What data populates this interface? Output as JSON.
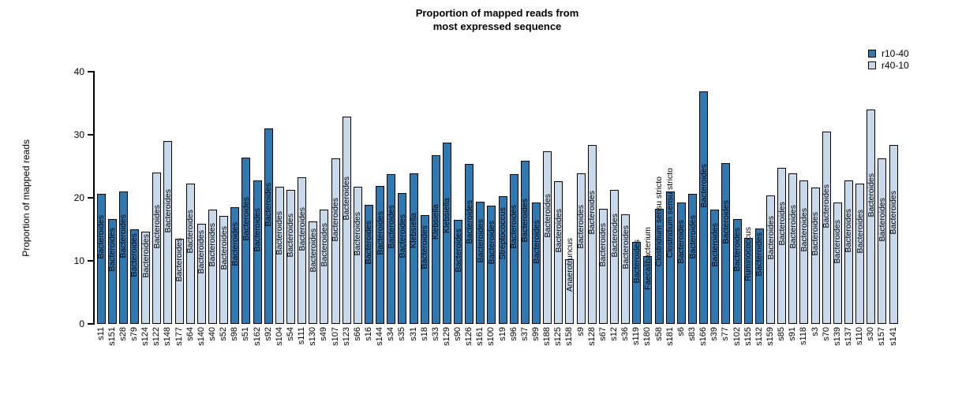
{
  "title": {
    "line1": "Proportion of mapped reads from",
    "line2": "most expressed sequence"
  },
  "y_axis": {
    "label": "Proportion of mapped reads",
    "ticks": [
      0,
      10,
      20,
      30,
      40
    ],
    "max": 40
  },
  "legend": [
    {
      "label": "r10-40",
      "group": "r10-40"
    },
    {
      "label": "r40-10",
      "group": "r40-10"
    }
  ],
  "chart_data": {
    "type": "bar",
    "title": "Proportion of mapped reads from most expressed sequence",
    "xlabel": "",
    "ylabel": "Proportion of mapped reads",
    "ylim": [
      0,
      40
    ],
    "grid": false,
    "legend_position": "top-right",
    "groups": {
      "r10-40": "#2f79b2",
      "r40-10": "#c9d9ec"
    },
    "bars": [
      {
        "sample": "s11",
        "value": 20.6,
        "group": "r10-40",
        "label": "Bacteroides"
      },
      {
        "sample": "s151",
        "value": 16.6,
        "group": "r10-40",
        "label": "Bacteroides"
      },
      {
        "sample": "s28",
        "value": 21.0,
        "group": "r10-40",
        "label": "Bacteroides"
      },
      {
        "sample": "s79",
        "value": 15.0,
        "group": "r10-40",
        "label": "Bacteroides"
      },
      {
        "sample": "s124",
        "value": 14.6,
        "group": "r40-10",
        "label": "Bacteroides"
      },
      {
        "sample": "s122",
        "value": 24.0,
        "group": "r40-10",
        "label": "Bacteroides"
      },
      {
        "sample": "s148",
        "value": 29.0,
        "group": "r40-10",
        "label": "Bacteroides"
      },
      {
        "sample": "s177",
        "value": 13.5,
        "group": "r40-10",
        "label": "Bacteroides"
      },
      {
        "sample": "s64",
        "value": 22.3,
        "group": "r40-10",
        "label": "Bacteroides"
      },
      {
        "sample": "s140",
        "value": 15.9,
        "group": "r40-10",
        "label": "Bacteroides"
      },
      {
        "sample": "s40",
        "value": 18.1,
        "group": "r40-10",
        "label": "Bacteroides"
      },
      {
        "sample": "s52",
        "value": 17.1,
        "group": "r40-10",
        "label": "Bacteroides"
      },
      {
        "sample": "s98",
        "value": 18.5,
        "group": "r10-40",
        "label": "Bacteroides"
      },
      {
        "sample": "s51",
        "value": 26.4,
        "group": "r10-40",
        "label": "Bacteroides"
      },
      {
        "sample": "s162",
        "value": 22.8,
        "group": "r10-40",
        "label": "Bacteroides"
      },
      {
        "sample": "s92",
        "value": 31.0,
        "group": "r10-40",
        "label": "Bacteroides"
      },
      {
        "sample": "s104",
        "value": 21.8,
        "group": "r40-10",
        "label": "Bacteroides"
      },
      {
        "sample": "s54",
        "value": 21.2,
        "group": "r40-10",
        "label": "Bacteroides"
      },
      {
        "sample": "s111",
        "value": 23.2,
        "group": "r40-10",
        "label": "Bacteroides"
      },
      {
        "sample": "s130",
        "value": 16.3,
        "group": "r40-10",
        "label": "Bacteroides"
      },
      {
        "sample": "s49",
        "value": 18.1,
        "group": "r40-10",
        "label": "Bacteroides"
      },
      {
        "sample": "s107",
        "value": 26.2,
        "group": "r40-10",
        "label": "Bacteroides"
      },
      {
        "sample": "s123",
        "value": 32.9,
        "group": "r40-10",
        "label": "Bacteroides"
      },
      {
        "sample": "s66",
        "value": 21.7,
        "group": "r40-10",
        "label": "Bacteroides"
      },
      {
        "sample": "s16",
        "value": 18.9,
        "group": "r10-40",
        "label": "Bacteroides"
      },
      {
        "sample": "s144",
        "value": 21.9,
        "group": "r10-40",
        "label": "Bacteroides"
      },
      {
        "sample": "s34",
        "value": 23.8,
        "group": "r10-40",
        "label": "Bacteroides"
      },
      {
        "sample": "s35",
        "value": 20.8,
        "group": "r10-40",
        "label": "Bacteroides"
      },
      {
        "sample": "s31",
        "value": 23.9,
        "group": "r10-40",
        "label": "Klebsiella"
      },
      {
        "sample": "s18",
        "value": 17.3,
        "group": "r10-40",
        "label": "Bacteroides"
      },
      {
        "sample": "s33",
        "value": 26.7,
        "group": "r10-40",
        "label": "Klebsiella"
      },
      {
        "sample": "s129",
        "value": 28.7,
        "group": "r10-40",
        "label": "Klebsiella"
      },
      {
        "sample": "s90",
        "value": 16.5,
        "group": "r10-40",
        "label": "Bacteroides"
      },
      {
        "sample": "s126",
        "value": 25.4,
        "group": "r10-40",
        "label": "Bacteroides"
      },
      {
        "sample": "s161",
        "value": 19.4,
        "group": "r10-40",
        "label": "Bacteroides"
      },
      {
        "sample": "s100",
        "value": 18.8,
        "group": "r10-40",
        "label": "Bacteroides"
      },
      {
        "sample": "s19",
        "value": 20.3,
        "group": "r10-40",
        "label": "Streptococcus"
      },
      {
        "sample": "s96",
        "value": 23.8,
        "group": "r10-40",
        "label": "Bacteroides"
      },
      {
        "sample": "s37",
        "value": 25.9,
        "group": "r10-40",
        "label": "Bacteroides"
      },
      {
        "sample": "s99",
        "value": 19.2,
        "group": "r10-40",
        "label": "Bacteroides"
      },
      {
        "sample": "s188",
        "value": 27.4,
        "group": "r40-10",
        "label": "Bacteroides"
      },
      {
        "sample": "s125",
        "value": 22.6,
        "group": "r40-10",
        "label": "Bacteroides"
      },
      {
        "sample": "s158",
        "value": 10.2,
        "group": "r40-10",
        "label": "Anaerotruncus"
      },
      {
        "sample": "s9",
        "value": 23.9,
        "group": "r40-10",
        "label": "Bacteroides"
      },
      {
        "sample": "s128",
        "value": 28.4,
        "group": "r40-10",
        "label": "Bacteroides"
      },
      {
        "sample": "s67",
        "value": 18.2,
        "group": "r40-10",
        "label": "Bacteroides"
      },
      {
        "sample": "s12",
        "value": 21.2,
        "group": "r40-10",
        "label": "Bacteroides"
      },
      {
        "sample": "s36",
        "value": 17.4,
        "group": "r40-10",
        "label": "Bacteroides"
      },
      {
        "sample": "s119",
        "value": 13.0,
        "group": "r10-40",
        "label": "Bacteroides"
      },
      {
        "sample": "s180",
        "value": 10.7,
        "group": "r10-40",
        "label": "Faecalibacterium"
      },
      {
        "sample": "s58",
        "value": 18.2,
        "group": "r10-40",
        "label": "Clostridium sensu stricto"
      },
      {
        "sample": "s181",
        "value": 21.0,
        "group": "r10-40",
        "label": "Clostridium sensu stricto"
      },
      {
        "sample": "s6",
        "value": 19.2,
        "group": "r10-40",
        "label": "Bacteroides"
      },
      {
        "sample": "s83",
        "value": 20.6,
        "group": "r10-40",
        "label": "Bacteroides"
      },
      {
        "sample": "s166",
        "value": 36.9,
        "group": "r10-40",
        "label": "Bacteroides"
      },
      {
        "sample": "s39",
        "value": 18.1,
        "group": "r10-40",
        "label": "Bacteroides"
      },
      {
        "sample": "s77",
        "value": 25.5,
        "group": "r10-40",
        "label": "Bacteroides"
      },
      {
        "sample": "s102",
        "value": 16.6,
        "group": "r10-40",
        "label": "Bacteroides"
      },
      {
        "sample": "s155",
        "value": 13.6,
        "group": "r10-40",
        "label": "Ruminococcus"
      },
      {
        "sample": "s132",
        "value": 15.1,
        "group": "r10-40",
        "label": "Bacteroides"
      },
      {
        "sample": "s159",
        "value": 20.4,
        "group": "r40-10",
        "label": "Bacteroides"
      },
      {
        "sample": "s85",
        "value": 24.8,
        "group": "r40-10",
        "label": "Bacteroides"
      },
      {
        "sample": "s91",
        "value": 23.9,
        "group": "r40-10",
        "label": "Bacteroides"
      },
      {
        "sample": "s118",
        "value": 22.8,
        "group": "r40-10",
        "label": "Bacteroides"
      },
      {
        "sample": "s3",
        "value": 21.6,
        "group": "r40-10",
        "label": "Bacteroides"
      },
      {
        "sample": "s70",
        "value": 30.5,
        "group": "r40-10",
        "label": "Bacteroides"
      },
      {
        "sample": "s139",
        "value": 19.2,
        "group": "r40-10",
        "label": "Bacteroides"
      },
      {
        "sample": "s137",
        "value": 22.7,
        "group": "r40-10",
        "label": "Bacteroides"
      },
      {
        "sample": "s110",
        "value": 22.3,
        "group": "r40-10",
        "label": "Bacteroides"
      },
      {
        "sample": "s30",
        "value": 34.0,
        "group": "r40-10",
        "label": "Bacteroides"
      },
      {
        "sample": "s157",
        "value": 26.2,
        "group": "r40-10",
        "label": "Bacteroides"
      },
      {
        "sample": "s141",
        "value": 28.4,
        "group": "r40-10",
        "label": "Bacteroides"
      }
    ]
  }
}
